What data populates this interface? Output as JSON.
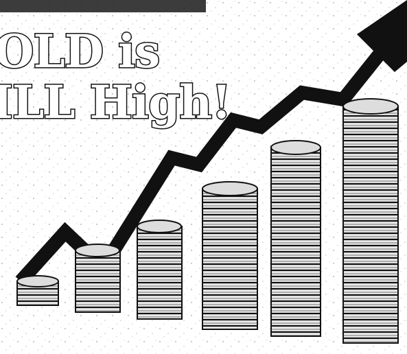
{
  "headline": {
    "lines": [
      "OLD is",
      "ILL High!"
    ]
  }
}
